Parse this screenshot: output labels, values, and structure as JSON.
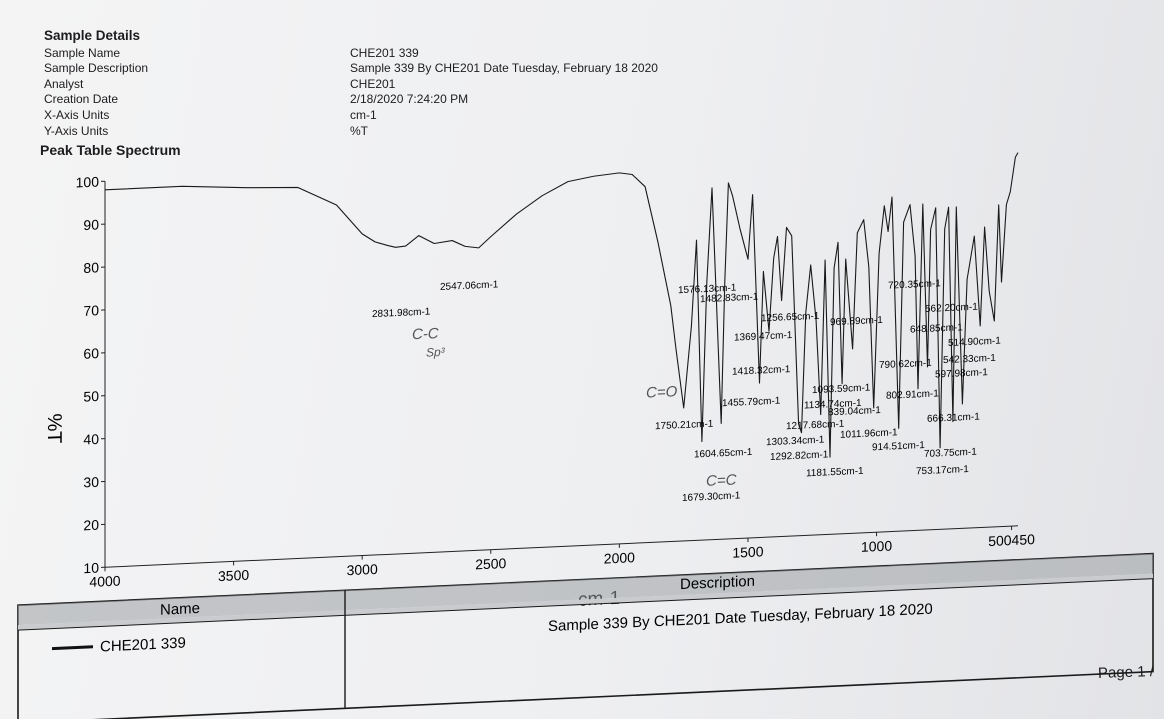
{
  "details": {
    "heading": "Sample Details",
    "rows": [
      {
        "label": "Sample Name",
        "value": "CHE201 339"
      },
      {
        "label": "Sample Description",
        "value": "Sample 339 By CHE201 Date Tuesday, February 18 2020"
      },
      {
        "label": "Analyst",
        "value": "CHE201"
      },
      {
        "label": "Creation Date",
        "value": "2/18/2020 7:24:20 PM"
      },
      {
        "label": "X-Axis Units",
        "value": "cm-1"
      },
      {
        "label": "Y-Axis Units",
        "value": "%T"
      }
    ]
  },
  "peak_table_title": "Peak Table Spectrum",
  "chart_data": {
    "type": "line",
    "xlabel": "cm-1",
    "ylabel": "%T",
    "xlim": [
      4000,
      450
    ],
    "ylim": [
      10,
      100
    ],
    "x_ticks": [
      "4000",
      "3500",
      "3000",
      "2500",
      "2000",
      "1500",
      "1000",
      "500450"
    ],
    "y_ticks": [
      "100",
      "90",
      "80",
      "70",
      "60",
      "50",
      "40",
      "30",
      "20",
      "10"
    ],
    "series": [
      {
        "color": "#1a1a1a",
        "x": [
          4000,
          3700,
          3450,
          3250,
          3100,
          3000,
          2950,
          2900,
          2870,
          2831,
          2780,
          2720,
          2650,
          2600,
          2547,
          2500,
          2400,
          2300,
          2200,
          2100,
          2000,
          1950,
          1900,
          1850,
          1800,
          1780,
          1750,
          1720,
          1700,
          1679,
          1660,
          1640,
          1604,
          1590,
          1576,
          1560,
          1530,
          1500,
          1482,
          1455,
          1440,
          1418,
          1400,
          1385,
          1369,
          1350,
          1330,
          1303,
          1292,
          1275,
          1256,
          1235,
          1217,
          1200,
          1181,
          1165,
          1150,
          1134,
          1120,
          1093,
          1075,
          1050,
          1030,
          1011,
          990,
          970,
          955,
          940,
          914,
          895,
          870,
          850,
          839,
          820,
          802,
          790,
          770,
          753,
          735,
          720,
          703,
          690,
          666,
          648,
          620,
          597,
          580,
          562,
          542,
          525,
          514,
          495,
          480,
          460,
          450
        ],
        "y": [
          98,
          98,
          97,
          96.5,
          92,
          85,
          83,
          82,
          81.5,
          81.7,
          84,
          82,
          82.5,
          81,
          80.5,
          83,
          88,
          92,
          95,
          96,
          96.5,
          96,
          93,
          80,
          65,
          55,
          41,
          60,
          80,
          33,
          70,
          92,
          37,
          70,
          93,
          90,
          82,
          75,
          90,
          46,
          72,
          58,
          75,
          80,
          65,
          82,
          80,
          36,
          34,
          62,
          73,
          60,
          38,
          74,
          28,
          72,
          78,
          45,
          74,
          53,
          80,
          83,
          72,
          39,
          75,
          86,
          80,
          88,
          34,
          82,
          86,
          74,
          43,
          86,
          48,
          80,
          85,
          29,
          80,
          85,
          35,
          85,
          39,
          68,
          78,
          57,
          80,
          65,
          58,
          85,
          67,
          85,
          88,
          96,
          97
        ]
      }
    ],
    "peak_labels": [
      {
        "text": "2831.98cm-1"
      },
      {
        "text": "2547.06cm-1"
      },
      {
        "text": "1750.21cm-1"
      },
      {
        "text": "1679.30cm-1"
      },
      {
        "text": "1604.65cm-1"
      },
      {
        "text": "1576.13cm-1"
      },
      {
        "text": "1482.83cm-1"
      },
      {
        "text": "1455.79cm-1"
      },
      {
        "text": "1418.32cm-1"
      },
      {
        "text": "1369.47cm-1"
      },
      {
        "text": "1303.34cm-1"
      },
      {
        "text": "1292.82cm-1"
      },
      {
        "text": "1256.65cm-1"
      },
      {
        "text": "1217.68cm-1"
      },
      {
        "text": "1181.55cm-1"
      },
      {
        "text": "1134.74cm-1"
      },
      {
        "text": "1093.59cm-1"
      },
      {
        "text": "1011.96cm-1"
      },
      {
        "text": "969.89cm-1"
      },
      {
        "text": "914.51cm-1"
      },
      {
        "text": "839.04cm-1"
      },
      {
        "text": "802.91cm-1"
      },
      {
        "text": "790.62cm-1"
      },
      {
        "text": "753.17cm-1"
      },
      {
        "text": "720.35cm-1"
      },
      {
        "text": "703.75cm-1"
      },
      {
        "text": "666.31cm-1"
      },
      {
        "text": "648.85cm-1"
      },
      {
        "text": "597.98cm-1"
      },
      {
        "text": "562.20cm-1"
      },
      {
        "text": "542.33cm-1"
      },
      {
        "text": "514.90cm-1"
      }
    ],
    "annotations": [
      {
        "text": "C-C"
      },
      {
        "text": "Sp³"
      },
      {
        "text": "C=O"
      },
      {
        "text": "C=C"
      }
    ]
  },
  "table": {
    "name_header": "Name",
    "description_header": "Description",
    "name_value": "CHE201 339",
    "description_value": "Sample 339 By CHE201 Date Tuesday, February 18 2020"
  },
  "page_label": "Page 1 /"
}
